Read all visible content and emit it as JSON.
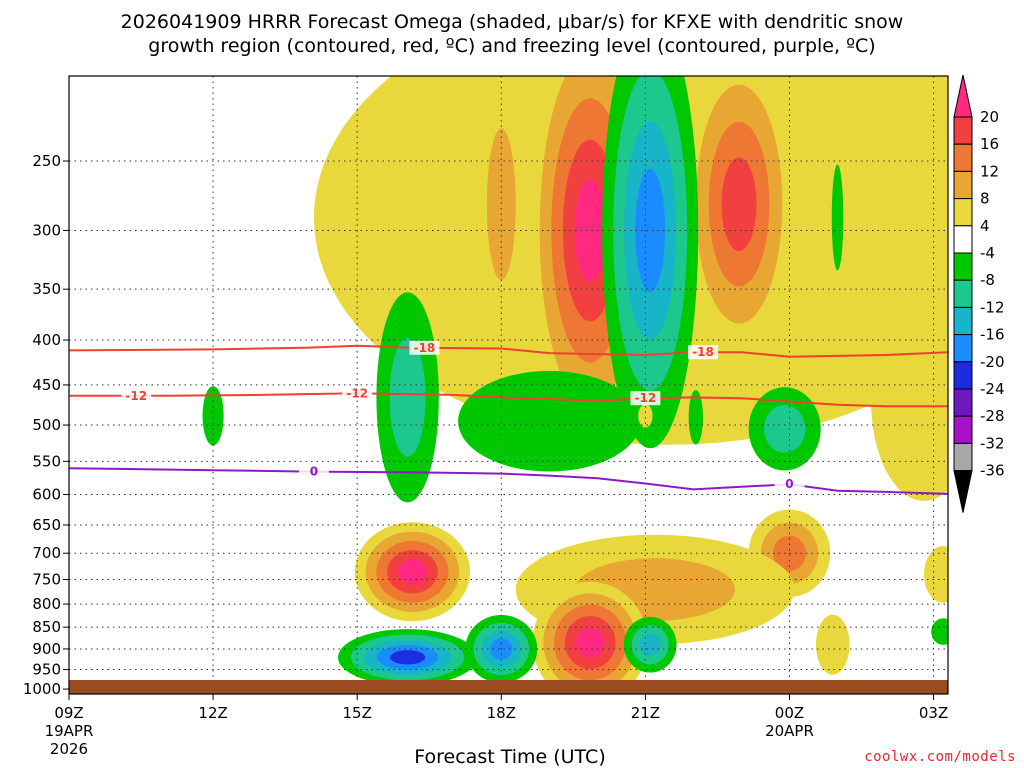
{
  "chart_data": {
    "type": "heatmap",
    "title_line1": "2026041909 HRRR Forecast Omega (shaded, μbar/s) for KFXE with dendritic snow",
    "title_line2": "growth region (contoured, red, ºC) and freezing level (contoured, purple, ºC)",
    "xlabel": "Forecast Time (UTC)",
    "ylabel": "",
    "credit": "coolwx.com/models",
    "x_ticks": [
      {
        "hour": 0,
        "label": "09Z",
        "sub1": "19APR",
        "sub2": "2026"
      },
      {
        "hour": 3,
        "label": "12Z",
        "sub1": "",
        "sub2": ""
      },
      {
        "hour": 6,
        "label": "15Z",
        "sub1": "",
        "sub2": ""
      },
      {
        "hour": 9,
        "label": "18Z",
        "sub1": "",
        "sub2": ""
      },
      {
        "hour": 12,
        "label": "21Z",
        "sub1": "",
        "sub2": ""
      },
      {
        "hour": 15,
        "label": "00Z",
        "sub1": "20APR",
        "sub2": ""
      },
      {
        "hour": 18,
        "label": "03Z",
        "sub1": "",
        "sub2": ""
      }
    ],
    "xlim": [
      0,
      18.3
    ],
    "y_ticks": [
      250,
      300,
      350,
      400,
      450,
      500,
      550,
      600,
      650,
      700,
      750,
      800,
      850,
      900,
      950,
      1000
    ],
    "ylim_hpa": [
      200,
      1013
    ],
    "colorbar": {
      "labels": [
        "20",
        "16",
        "12",
        "8",
        "4",
        "-4",
        "-8",
        "-12",
        "-16",
        "-20",
        "-24",
        "-28",
        "-32",
        "-36"
      ],
      "colors": [
        "#ff2a80",
        "#f24040",
        "#ee7733",
        "#e8a733",
        "#e8d83b",
        "#ffffff",
        "#00c800",
        "#1cc88e",
        "#18b4c8",
        "#1a8cff",
        "#1c2ce0",
        "#7018c0",
        "#a510c8",
        "#a8a8a8",
        "#000000"
      ]
    },
    "omega_features": [
      {
        "name": "upper-weak-rise",
        "cx": 12.5,
        "cy_hpa": 290,
        "rx": 7.4,
        "ry": 155,
        "levels": [
          4
        ]
      },
      {
        "name": "upper-rise-20z",
        "cx": 10.85,
        "cy_hpa": 300,
        "rx": 1.05,
        "ry": 130,
        "levels": [
          8,
          12,
          16,
          20
        ]
      },
      {
        "name": "upper-rise-23z",
        "cx": 13.95,
        "cy_hpa": 280,
        "rx": 0.9,
        "ry": 85,
        "levels": [
          8,
          12,
          16
        ]
      },
      {
        "name": "upper-rise-18z",
        "cx": 9.0,
        "cy_hpa": 280,
        "rx": 0.3,
        "ry": 55,
        "levels": [
          8
        ]
      },
      {
        "name": "upper-sink-21z",
        "cx": 12.1,
        "cy_hpa": 300,
        "rx": 1.0,
        "ry": 155,
        "levels": [
          -4,
          -8,
          -12,
          -16
        ]
      },
      {
        "name": "sink-16z",
        "cx": 7.05,
        "cy_hpa": 465,
        "rx": 0.65,
        "ry": 125,
        "levels": [
          -4,
          -8
        ]
      },
      {
        "name": "sink-12z",
        "cx": 3.0,
        "cy_hpa": 488,
        "rx": 0.22,
        "ry": 38,
        "levels": [
          -4
        ]
      },
      {
        "name": "sink-19z-band",
        "cx": 10.0,
        "cy_hpa": 495,
        "rx": 1.9,
        "ry": 65,
        "levels": [
          -4
        ]
      },
      {
        "name": "sink-00z",
        "cx": 14.9,
        "cy_hpa": 505,
        "rx": 0.75,
        "ry": 55,
        "levels": [
          -4,
          -8
        ]
      },
      {
        "name": "sink-upper-01z",
        "cx": 16.0,
        "cy_hpa": 290,
        "rx": 0.12,
        "ry": 40,
        "levels": [
          -4
        ]
      },
      {
        "name": "rise-16z-mid",
        "cx": 7.15,
        "cy_hpa": 735,
        "rx": 1.2,
        "ry": 95,
        "levels": [
          4,
          8,
          12,
          16,
          20
        ]
      },
      {
        "name": "rise-00z-mid",
        "cx": 15.0,
        "cy_hpa": 700,
        "rx": 0.85,
        "ry": 80,
        "levels": [
          4,
          8,
          12
        ]
      },
      {
        "name": "rise-21z-low",
        "cx": 12.2,
        "cy_hpa": 770,
        "rx": 2.9,
        "ry": 110,
        "levels": [
          4,
          8
        ]
      },
      {
        "name": "rise-20z-low",
        "cx": 10.85,
        "cy_hpa": 885,
        "rx": 1.2,
        "ry": 140,
        "levels": [
          4,
          8,
          12,
          16,
          20
        ]
      },
      {
        "name": "sink-15z-low",
        "cx": 7.05,
        "cy_hpa": 920,
        "rx": 1.45,
        "ry": 68,
        "levels": [
          -4,
          -8,
          -12,
          -16,
          -20
        ]
      },
      {
        "name": "sink-18z-low",
        "cx": 9.0,
        "cy_hpa": 900,
        "rx": 0.75,
        "ry": 80,
        "levels": [
          -4,
          -8,
          -12,
          -16
        ]
      },
      {
        "name": "sink-21z-low",
        "cx": 12.1,
        "cy_hpa": 890,
        "rx": 0.55,
        "ry": 65,
        "levels": [
          -4,
          -8,
          -12
        ]
      },
      {
        "name": "rise-01z-low",
        "cx": 15.9,
        "cy_hpa": 890,
        "rx": 0.35,
        "ry": 70,
        "levels": [
          4
        ]
      },
      {
        "name": "rise-03z-mid",
        "cx": 18.2,
        "cy_hpa": 740,
        "rx": 0.4,
        "ry": 55,
        "levels": [
          4
        ]
      },
      {
        "name": "sink-03z-low",
        "cx": 18.2,
        "cy_hpa": 860,
        "rx": 0.25,
        "ry": 30,
        "levels": [
          -4
        ]
      },
      {
        "name": "rise-03z-upper",
        "cx": 17.8,
        "cy_hpa": 470,
        "rx": 1.1,
        "ry": 120,
        "levels": [
          4
        ]
      },
      {
        "name": "rise-21z-tiny",
        "cx": 12.0,
        "cy_hpa": 488,
        "rx": 0.15,
        "ry": 15,
        "levels": [
          4
        ]
      },
      {
        "name": "sink-22z-tiny",
        "cx": 13.05,
        "cy_hpa": 490,
        "rx": 0.15,
        "ry": 35,
        "levels": [
          -4
        ]
      }
    ],
    "contours": [
      {
        "name": "isotherm-minus-18",
        "value": -18,
        "label": "-18",
        "color": "#f04030",
        "label_hours": [
          7.4,
          13.2
        ],
        "points": [
          [
            0,
            411
          ],
          [
            3,
            410
          ],
          [
            5,
            408
          ],
          [
            6,
            406
          ],
          [
            7,
            408
          ],
          [
            9,
            409
          ],
          [
            10,
            414
          ],
          [
            11,
            415
          ],
          [
            12,
            416
          ],
          [
            13,
            413
          ],
          [
            14,
            413
          ],
          [
            15,
            418
          ],
          [
            16,
            417
          ],
          [
            17,
            416
          ],
          [
            18.3,
            413
          ]
        ]
      },
      {
        "name": "isotherm-minus-12",
        "value": -12,
        "label": "-12",
        "color": "#f04030",
        "label_hours": [
          1.4,
          6.0,
          12.0
        ],
        "points": [
          [
            0,
            463
          ],
          [
            2,
            463
          ],
          [
            4,
            462
          ],
          [
            6,
            460
          ],
          [
            8,
            462
          ],
          [
            9,
            465
          ],
          [
            10,
            467
          ],
          [
            11,
            469
          ],
          [
            12,
            466
          ],
          [
            13,
            465
          ],
          [
            14,
            466
          ],
          [
            15,
            470
          ],
          [
            16,
            474
          ],
          [
            17,
            476
          ],
          [
            18.3,
            476
          ]
        ]
      },
      {
        "name": "freezing-level",
        "value": 0,
        "label": "0",
        "color": "#8e18c8",
        "label_hours": [
          5.1,
          15.0
        ],
        "points": [
          [
            0,
            560
          ],
          [
            3,
            563
          ],
          [
            5,
            565
          ],
          [
            7,
            566
          ],
          [
            8,
            567
          ],
          [
            9,
            568
          ],
          [
            10,
            571
          ],
          [
            11,
            575
          ],
          [
            12,
            583
          ],
          [
            13,
            592
          ],
          [
            14,
            588
          ],
          [
            15,
            584
          ],
          [
            16,
            594
          ],
          [
            17,
            596
          ],
          [
            18.3,
            599
          ]
        ]
      }
    ],
    "surface_fill_color": "#9a4b22"
  }
}
